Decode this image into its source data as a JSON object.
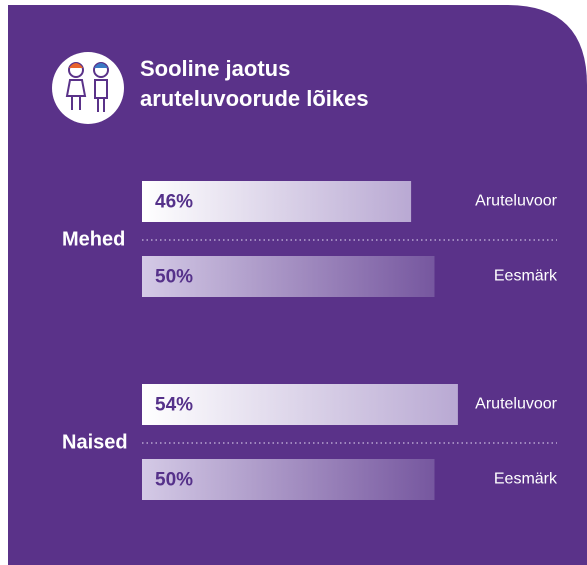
{
  "chart_data": {
    "type": "hbar-grouped",
    "title": [
      "Sooline jaotus",
      "aruteluvoorude lõikes"
    ],
    "categories": [
      "Mehed",
      "Naised"
    ],
    "series": [
      {
        "name": "Aruteluvoor",
        "color": "#b9a9d3",
        "values": [
          46,
          54
        ],
        "value_labels": [
          "46%",
          "54%"
        ]
      },
      {
        "name": "Eesmärk",
        "color": "#76579f",
        "values": [
          50,
          50
        ],
        "value_labels": [
          "50%",
          "50%"
        ]
      }
    ]
  }
}
